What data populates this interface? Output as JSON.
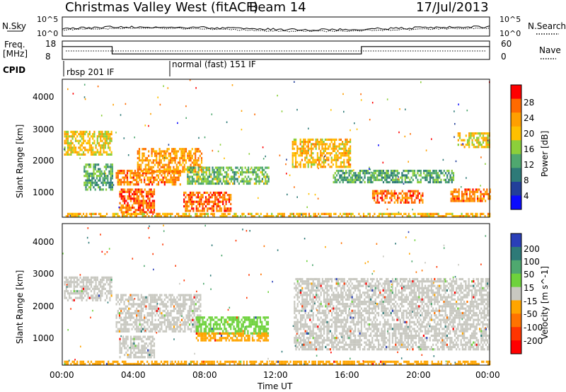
{
  "header": {
    "station": "Christmas Valley West (fitACF)",
    "beam": "Beam 14",
    "date": "17/Jul/2013"
  },
  "top_panels": {
    "nsky_label": "N.Sky",
    "nsky_ticks": [
      "10^5",
      "10^0"
    ],
    "nsearch_label": "N.Search",
    "nsearch_ticks": [
      "10^5",
      "10^0"
    ],
    "freq_label": "Freq.",
    "freq_unit": "[MHz]",
    "freq_ticks": [
      "18",
      "8"
    ],
    "nave_label": "Nave",
    "nave_ticks": [
      "60",
      "0"
    ],
    "cpid_label": "CPID",
    "cpid_segments": [
      "rbsp 201 IF",
      "normal (fast) 151 IF"
    ]
  },
  "axes": {
    "x_ticks": [
      "00:00",
      "04:00",
      "08:00",
      "12:00",
      "16:00",
      "20:00",
      "00:00"
    ],
    "x_label": "Time UT",
    "y_ticks": [
      "1000",
      "2000",
      "3000",
      "4000"
    ],
    "y_label": "Slant Range [km]"
  },
  "power_bar": {
    "label": "Power [dB]",
    "ticks": [
      "28",
      "24",
      "20",
      "16",
      "12",
      "8",
      "4"
    ],
    "colors": [
      "#ff0000",
      "#ff6a00",
      "#ff9f00",
      "#ffc000",
      "#8ccf3a",
      "#4fa86f",
      "#2e7a78",
      "#223f9a",
      "#0b0bff"
    ]
  },
  "velocity_bar": {
    "label": "Velocity [m s^-1]",
    "ticks": [
      "200",
      "100",
      "50",
      "15",
      "-15",
      "-50",
      "-100",
      "-200"
    ],
    "colors": [
      "#2a3fb8",
      "#2e7a78",
      "#4fa86f",
      "#6ed23c",
      "#c8c8c0",
      "#ffa500",
      "#ff7300",
      "#ff3500",
      "#ff0000"
    ]
  },
  "chart_data": {
    "type": "heatmap",
    "title": "Christmas Valley West (fitACF)",
    "subtitle": "Beam 14",
    "xlabel": "Time UT",
    "ylabel": "Slant Range [km]",
    "xlim_hours": [
      0,
      24
    ],
    "ylim_km": [
      180,
      4600
    ],
    "power_regions": [
      {
        "t0": 0.1,
        "t1": 2.8,
        "r0": 2200,
        "r1": 2950,
        "db": 18
      },
      {
        "t0": 1.2,
        "t1": 2.8,
        "r0": 1050,
        "r1": 1900,
        "db": 10
      },
      {
        "t0": 3.0,
        "t1": 6.6,
        "r0": 1200,
        "r1": 1700,
        "db": 24
      },
      {
        "t0": 4.2,
        "t1": 7.8,
        "r0": 1650,
        "r1": 2400,
        "db": 22
      },
      {
        "t0": 3.2,
        "t1": 5.2,
        "r0": 350,
        "r1": 1100,
        "db": 26
      },
      {
        "t0": 7.0,
        "t1": 11.6,
        "r0": 1250,
        "r1": 1800,
        "db": 12
      },
      {
        "t0": 6.8,
        "t1": 9.5,
        "r0": 400,
        "r1": 1000,
        "db": 26
      },
      {
        "t0": 12.9,
        "t1": 16.2,
        "r0": 1800,
        "r1": 2700,
        "db": 20
      },
      {
        "t0": 15.2,
        "t1": 22.0,
        "r0": 1300,
        "r1": 1700,
        "db": 10
      },
      {
        "t0": 17.4,
        "t1": 20.2,
        "r0": 650,
        "r1": 1050,
        "db": 26
      },
      {
        "t0": 21.8,
        "t1": 24.0,
        "r0": 700,
        "r1": 1100,
        "db": 24
      },
      {
        "t0": 22.2,
        "t1": 24.0,
        "r0": 2400,
        "r1": 2900,
        "db": 18
      },
      {
        "t0": 0.1,
        "t1": 24.0,
        "r0": 180,
        "r1": 320,
        "db": 20
      }
    ],
    "velocity_regions": [
      {
        "t0": 0.1,
        "t1": 2.8,
        "r0": 2200,
        "r1": 2950,
        "v": 0
      },
      {
        "t0": 3.0,
        "t1": 7.8,
        "r0": 1200,
        "r1": 2400,
        "v": 0
      },
      {
        "t0": 3.2,
        "t1": 5.2,
        "r0": 400,
        "r1": 1100,
        "v": 0
      },
      {
        "t0": 7.5,
        "t1": 11.6,
        "r0": 1200,
        "r1": 1700,
        "v": 30
      },
      {
        "t0": 7.5,
        "t1": 11.6,
        "r0": 950,
        "r1": 1200,
        "v": -40
      },
      {
        "t0": 13.0,
        "t1": 24.0,
        "r0": 700,
        "r1": 2900,
        "v": 0
      },
      {
        "t0": 0.1,
        "t1": 24.0,
        "r0": 180,
        "r1": 320,
        "v": -40
      }
    ],
    "freq_mhz": [
      {
        "t0": 0.0,
        "t1": 2.8,
        "f": 15
      },
      {
        "t0": 2.8,
        "t1": 11.7,
        "f": 11
      },
      {
        "t0": 11.7,
        "t1": 16.8,
        "f": 11
      },
      {
        "t0": 16.8,
        "t1": 24.0,
        "f": 15
      }
    ]
  }
}
